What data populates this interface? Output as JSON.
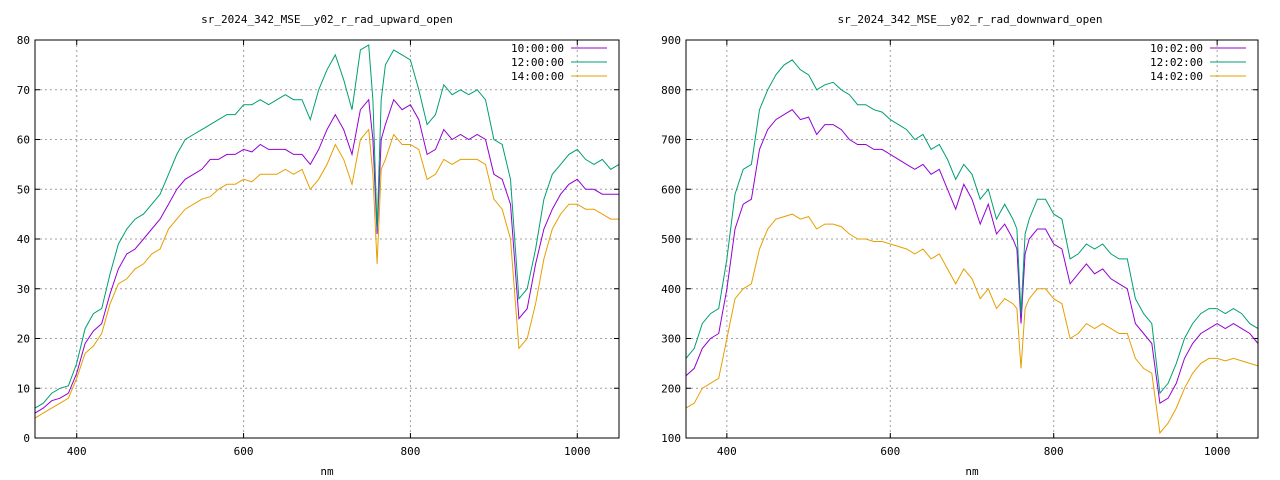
{
  "chart_data": [
    {
      "type": "line",
      "title": "sr_2024_342_MSE__y02_r_rad_upward_open",
      "xlabel": "nm",
      "ylabel": "",
      "xlim": [
        350,
        1050
      ],
      "ylim": [
        0,
        80
      ],
      "xticks": [
        400,
        600,
        800,
        1000
      ],
      "yticks": [
        0,
        10,
        20,
        30,
        40,
        50,
        60,
        70,
        80
      ],
      "grid": true,
      "legend": "top-right",
      "x": [
        350,
        360,
        370,
        380,
        390,
        400,
        410,
        420,
        430,
        440,
        450,
        460,
        470,
        480,
        490,
        500,
        510,
        520,
        530,
        540,
        550,
        560,
        570,
        580,
        590,
        600,
        610,
        620,
        630,
        640,
        650,
        660,
        670,
        680,
        690,
        700,
        710,
        720,
        730,
        740,
        750,
        755,
        760,
        765,
        770,
        780,
        790,
        800,
        810,
        820,
        830,
        840,
        850,
        860,
        870,
        880,
        890,
        900,
        910,
        920,
        930,
        940,
        950,
        960,
        970,
        980,
        990,
        1000,
        1010,
        1020,
        1030,
        1040,
        1050
      ],
      "series": [
        {
          "name": "10:00:00",
          "color": "#9400d3",
          "values": [
            5,
            6,
            7.5,
            8,
            9,
            13,
            19,
            21.5,
            23,
            29,
            34,
            37,
            38,
            40,
            42,
            44,
            47,
            50,
            52,
            53,
            54,
            56,
            56,
            57,
            57,
            58,
            57.5,
            59,
            58,
            58,
            58,
            57,
            57,
            55,
            58,
            62,
            65,
            62,
            57,
            66,
            68,
            60,
            41,
            60,
            63,
            68,
            66,
            67,
            64,
            57,
            58,
            62,
            60,
            61,
            60,
            61,
            60,
            53,
            52,
            47,
            24,
            26,
            35,
            42,
            46,
            49,
            51,
            52,
            50,
            50,
            49,
            49,
            49
          ]
        },
        {
          "name": "12:00:00",
          "color": "#009e73",
          "values": [
            6,
            7,
            9,
            10,
            10.5,
            15,
            22,
            25,
            26,
            33,
            39,
            42,
            44,
            45,
            47,
            49,
            53,
            57,
            60,
            61,
            62,
            63,
            64,
            65,
            65,
            67,
            67,
            68,
            67,
            68,
            69,
            68,
            68,
            64,
            70,
            74,
            77,
            72,
            66,
            78,
            79,
            68,
            42,
            68,
            75,
            78,
            77,
            76,
            70,
            63,
            65,
            71,
            69,
            70,
            69,
            70,
            68,
            60,
            59,
            52,
            28,
            30,
            38,
            48,
            53,
            55,
            57,
            58,
            56,
            55,
            56,
            54,
            55
          ]
        },
        {
          "name": "14:00:00",
          "color": "#e69f00",
          "values": [
            4,
            5,
            6,
            7,
            8,
            12,
            17,
            18.5,
            21,
            27,
            31,
            32,
            34,
            35,
            37,
            38,
            42,
            44,
            46,
            47,
            48,
            48.5,
            50,
            51,
            51,
            52,
            51.5,
            53,
            53,
            53,
            54,
            53,
            54,
            50,
            52,
            55,
            59,
            56,
            51,
            60,
            62,
            53,
            35,
            54,
            56,
            61,
            59,
            59,
            58,
            52,
            53,
            56,
            55,
            56,
            56,
            56,
            55,
            48,
            46,
            40,
            18,
            20,
            27,
            36,
            42,
            45,
            47,
            47,
            46,
            46,
            45,
            44,
            44
          ]
        }
      ]
    },
    {
      "type": "line",
      "title": "sr_2024_342_MSE__y02_r_rad_downward_open",
      "xlabel": "nm",
      "ylabel": "",
      "xlim": [
        350,
        1050
      ],
      "ylim": [
        100,
        900
      ],
      "xticks": [
        400,
        600,
        800,
        1000
      ],
      "yticks": [
        100,
        200,
        300,
        400,
        500,
        600,
        700,
        800,
        900
      ],
      "grid": true,
      "legend": "top-right",
      "x": [
        350,
        360,
        370,
        380,
        390,
        400,
        410,
        420,
        430,
        440,
        450,
        460,
        470,
        480,
        490,
        500,
        510,
        520,
        530,
        540,
        550,
        560,
        570,
        580,
        590,
        600,
        610,
        620,
        630,
        640,
        650,
        660,
        670,
        680,
        690,
        700,
        710,
        720,
        730,
        740,
        750,
        755,
        760,
        765,
        770,
        780,
        790,
        800,
        810,
        820,
        830,
        840,
        850,
        860,
        870,
        880,
        890,
        900,
        910,
        920,
        930,
        940,
        950,
        960,
        970,
        980,
        990,
        1000,
        1010,
        1020,
        1030,
        1040,
        1050
      ],
      "series": [
        {
          "name": "10:02:00",
          "color": "#9400d3",
          "values": [
            225,
            240,
            280,
            300,
            310,
            400,
            520,
            570,
            580,
            680,
            720,
            740,
            750,
            760,
            740,
            745,
            710,
            730,
            730,
            720,
            700,
            690,
            690,
            680,
            680,
            670,
            660,
            650,
            640,
            650,
            630,
            640,
            600,
            560,
            610,
            580,
            530,
            570,
            510,
            530,
            500,
            480,
            330,
            470,
            500,
            520,
            520,
            490,
            480,
            410,
            430,
            450,
            430,
            440,
            420,
            410,
            400,
            330,
            310,
            290,
            170,
            180,
            210,
            260,
            290,
            310,
            320,
            330,
            320,
            330,
            320,
            310,
            290
          ]
        },
        {
          "name": "12:02:00",
          "color": "#009e73",
          "values": [
            260,
            280,
            330,
            350,
            360,
            460,
            590,
            640,
            650,
            760,
            800,
            830,
            850,
            860,
            840,
            830,
            800,
            810,
            815,
            800,
            790,
            770,
            770,
            760,
            755,
            740,
            730,
            720,
            700,
            710,
            680,
            690,
            660,
            620,
            650,
            630,
            580,
            600,
            540,
            570,
            540,
            520,
            350,
            510,
            540,
            580,
            580,
            550,
            540,
            460,
            470,
            490,
            480,
            490,
            470,
            460,
            460,
            380,
            350,
            330,
            190,
            210,
            250,
            300,
            330,
            350,
            360,
            360,
            350,
            360,
            350,
            330,
            320
          ]
        },
        {
          "name": "14:02:00",
          "color": "#e69f00",
          "values": [
            160,
            170,
            200,
            210,
            220,
            300,
            380,
            400,
            410,
            480,
            520,
            540,
            545,
            550,
            540,
            545,
            520,
            530,
            530,
            525,
            510,
            500,
            500,
            495,
            495,
            490,
            485,
            480,
            470,
            480,
            460,
            470,
            440,
            410,
            440,
            420,
            380,
            400,
            360,
            380,
            370,
            360,
            240,
            360,
            380,
            400,
            400,
            380,
            370,
            300,
            310,
            330,
            320,
            330,
            320,
            310,
            310,
            260,
            240,
            230,
            110,
            130,
            160,
            200,
            230,
            250,
            260,
            260,
            255,
            260,
            255,
            250,
            245
          ]
        }
      ]
    }
  ]
}
